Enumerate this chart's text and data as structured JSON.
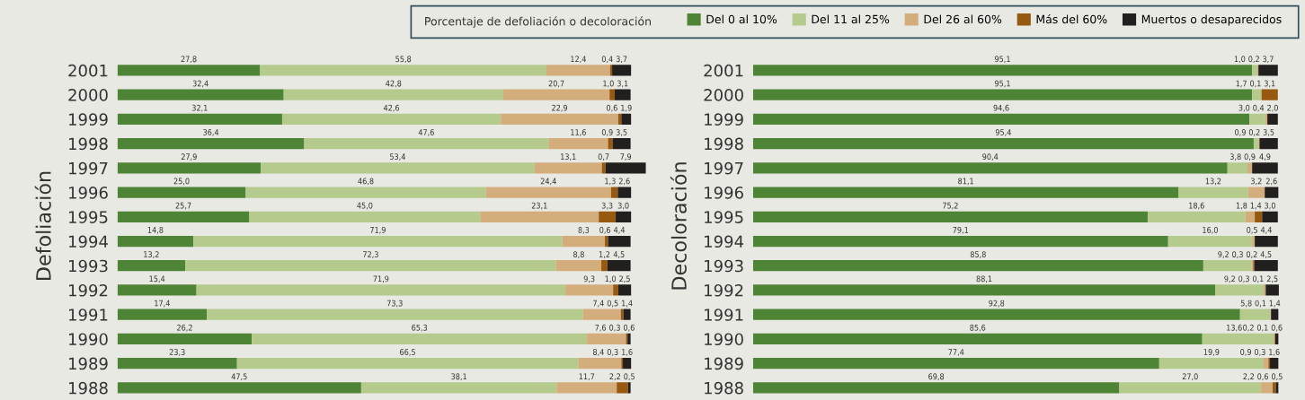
{
  "chart_data": [
    {
      "type": "bar",
      "orientation": "horizontal",
      "stacked": true,
      "ylabel": "Defoliación",
      "legend": "top",
      "legend_title": "Porcentaje de defoliación o decoloración",
      "tick_labels": "y",
      "categories": [
        "2001",
        "2000",
        "1999",
        "1998",
        "1997",
        "1996",
        "1995",
        "1994",
        "1993",
        "1992",
        "1991",
        "1990",
        "1989",
        "1988"
      ],
      "series": [
        {
          "name": "Del 0 al 10%",
          "color": "#4e8435",
          "values": [
            27.8,
            32.4,
            32.1,
            36.4,
            27.9,
            25.0,
            25.7,
            14.8,
            13.2,
            15.4,
            17.4,
            26.2,
            23.3,
            47.5
          ],
          "value_labels": [
            "27,8",
            "32,4",
            "32,1",
            "36,4",
            "27,9",
            "25,0",
            "25,7",
            "14,8",
            "13,2",
            "15,4",
            "17,4",
            "26,2",
            "23,3",
            "47,5"
          ]
        },
        {
          "name": "Del 11 al 25%",
          "color": "#b5ca8d",
          "values": [
            55.8,
            42.8,
            42.6,
            47.6,
            53.4,
            46.8,
            45.0,
            71.9,
            72.3,
            71.9,
            73.3,
            65.3,
            66.5,
            38.1
          ],
          "value_labels": [
            "55,8",
            "42,8",
            "42,6",
            "47,6",
            "53,4",
            "46,8",
            "45,0",
            "71,9",
            "72,3",
            "71,9",
            "73,3",
            "65,3",
            "66,5",
            "38,1"
          ]
        },
        {
          "name": "Del 26 al 60%",
          "color": "#d4ad7d",
          "values": [
            12.4,
            20.7,
            22.9,
            11.6,
            13.1,
            24.4,
            23.1,
            8.3,
            8.8,
            9.3,
            7.4,
            7.6,
            8.4,
            11.7
          ],
          "value_labels": [
            "12,4",
            "20,7",
            "22,9",
            "11,6",
            "13,1",
            "24,4",
            "23,1",
            "8,3",
            "8,8",
            "9,3",
            "7,4",
            "7,6",
            "8,4",
            "11,7"
          ]
        },
        {
          "name": "Más del 60%",
          "color": "#97590f",
          "values": [
            0.4,
            1.0,
            0.6,
            0.9,
            0.7,
            1.3,
            3.3,
            0.6,
            1.2,
            1.0,
            0.5,
            0.3,
            0.3,
            2.2
          ],
          "value_labels": [
            "0,4",
            "1,0",
            "0,6",
            "0,9",
            "0,7",
            "1,3",
            "3,3",
            "0,6",
            "1,2",
            "1,0",
            "0,5",
            "0,3",
            "0,3",
            "2,2"
          ]
        },
        {
          "name": "Muertos o desaparecidos",
          "color": "#221f1f",
          "values": [
            3.7,
            3.1,
            1.9,
            3.5,
            7.9,
            2.6,
            3.0,
            4.4,
            4.5,
            2.5,
            1.4,
            0.6,
            1.6,
            0.5
          ],
          "value_labels": [
            "3,7",
            "3,1",
            "1,9",
            "3,5",
            "7,9",
            "2,6",
            "3,0",
            "4,4",
            "4,5",
            "2,5",
            "1,4",
            "0,6",
            "1,6",
            "0,5"
          ]
        }
      ]
    },
    {
      "type": "bar",
      "orientation": "horizontal",
      "stacked": true,
      "ylabel": "Decoloración",
      "tick_labels": "y",
      "categories": [
        "2001",
        "2000",
        "1999",
        "1998",
        "1997",
        "1996",
        "1995",
        "1994",
        "1993",
        "1992",
        "1991",
        "1990",
        "1989",
        "1988"
      ],
      "series": [
        {
          "color": "#4e8435",
          "values": [
            95.1,
            95.1,
            94.6,
            95.4,
            90.4,
            81.1,
            75.2,
            79.1,
            85.8,
            88.1,
            92.8,
            85.6,
            77.4,
            69.8
          ],
          "value_labels": [
            "95,1",
            "95,1",
            "94,6",
            "95,4",
            "90,4",
            "81,1",
            "75,2",
            "79,1",
            "85,8",
            "88,1",
            "92,8",
            "85,6",
            "77,4",
            "69,8"
          ]
        },
        {
          "color": "#b5ca8d",
          "values": [
            1.0,
            1.7,
            3.0,
            0.9,
            3.8,
            13.2,
            18.6,
            16.0,
            9.2,
            9.2,
            5.8,
            13.6,
            19.9,
            27.0
          ],
          "value_labels": [
            "1,0",
            "1,7",
            "3,0",
            "0,9",
            "3,8",
            "13,2",
            "18,6",
            "16,0",
            "9,2",
            "9,2",
            "5,8",
            "13,6",
            "19,9",
            "27,0"
          ]
        },
        {
          "color": "#d4ad7d",
          "values": [
            0.2,
            0.1,
            0.4,
            0.2,
            0.9,
            3.2,
            1.8,
            0.5,
            0.3,
            0.3,
            0.1,
            0.2,
            0.9,
            2.2
          ],
          "value_labels": [
            "0,2",
            "0,1",
            "0,4",
            "0,2",
            "0,9",
            "3,2",
            "1,8",
            "0,5",
            "0,3",
            "0,3",
            "0,1",
            "0,2",
            "0,9",
            "2,2"
          ]
        },
        {
          "color": "#97590f",
          "values": [
            null,
            3.1,
            null,
            null,
            null,
            null,
            1.4,
            null,
            0.2,
            0.1,
            null,
            0.1,
            0.3,
            0.6
          ],
          "value_labels": [
            null,
            "3,1",
            null,
            null,
            null,
            null,
            "1,4",
            null,
            "0,2",
            "0,1",
            null,
            "0,1",
            "0,3",
            "0,6"
          ]
        },
        {
          "color": "#221f1f",
          "values": [
            3.7,
            null,
            2.0,
            3.5,
            4.9,
            2.6,
            3.0,
            4.4,
            4.5,
            2.5,
            1.4,
            0.6,
            1.6,
            0.5
          ],
          "value_labels": [
            "3,7",
            null,
            "2,0",
            "3,5",
            "4,9",
            "2,6",
            "3,0",
            "4,4",
            "4,5",
            "2,5",
            "1,4",
            "0,6",
            "1,6",
            "0,5"
          ]
        }
      ]
    }
  ]
}
